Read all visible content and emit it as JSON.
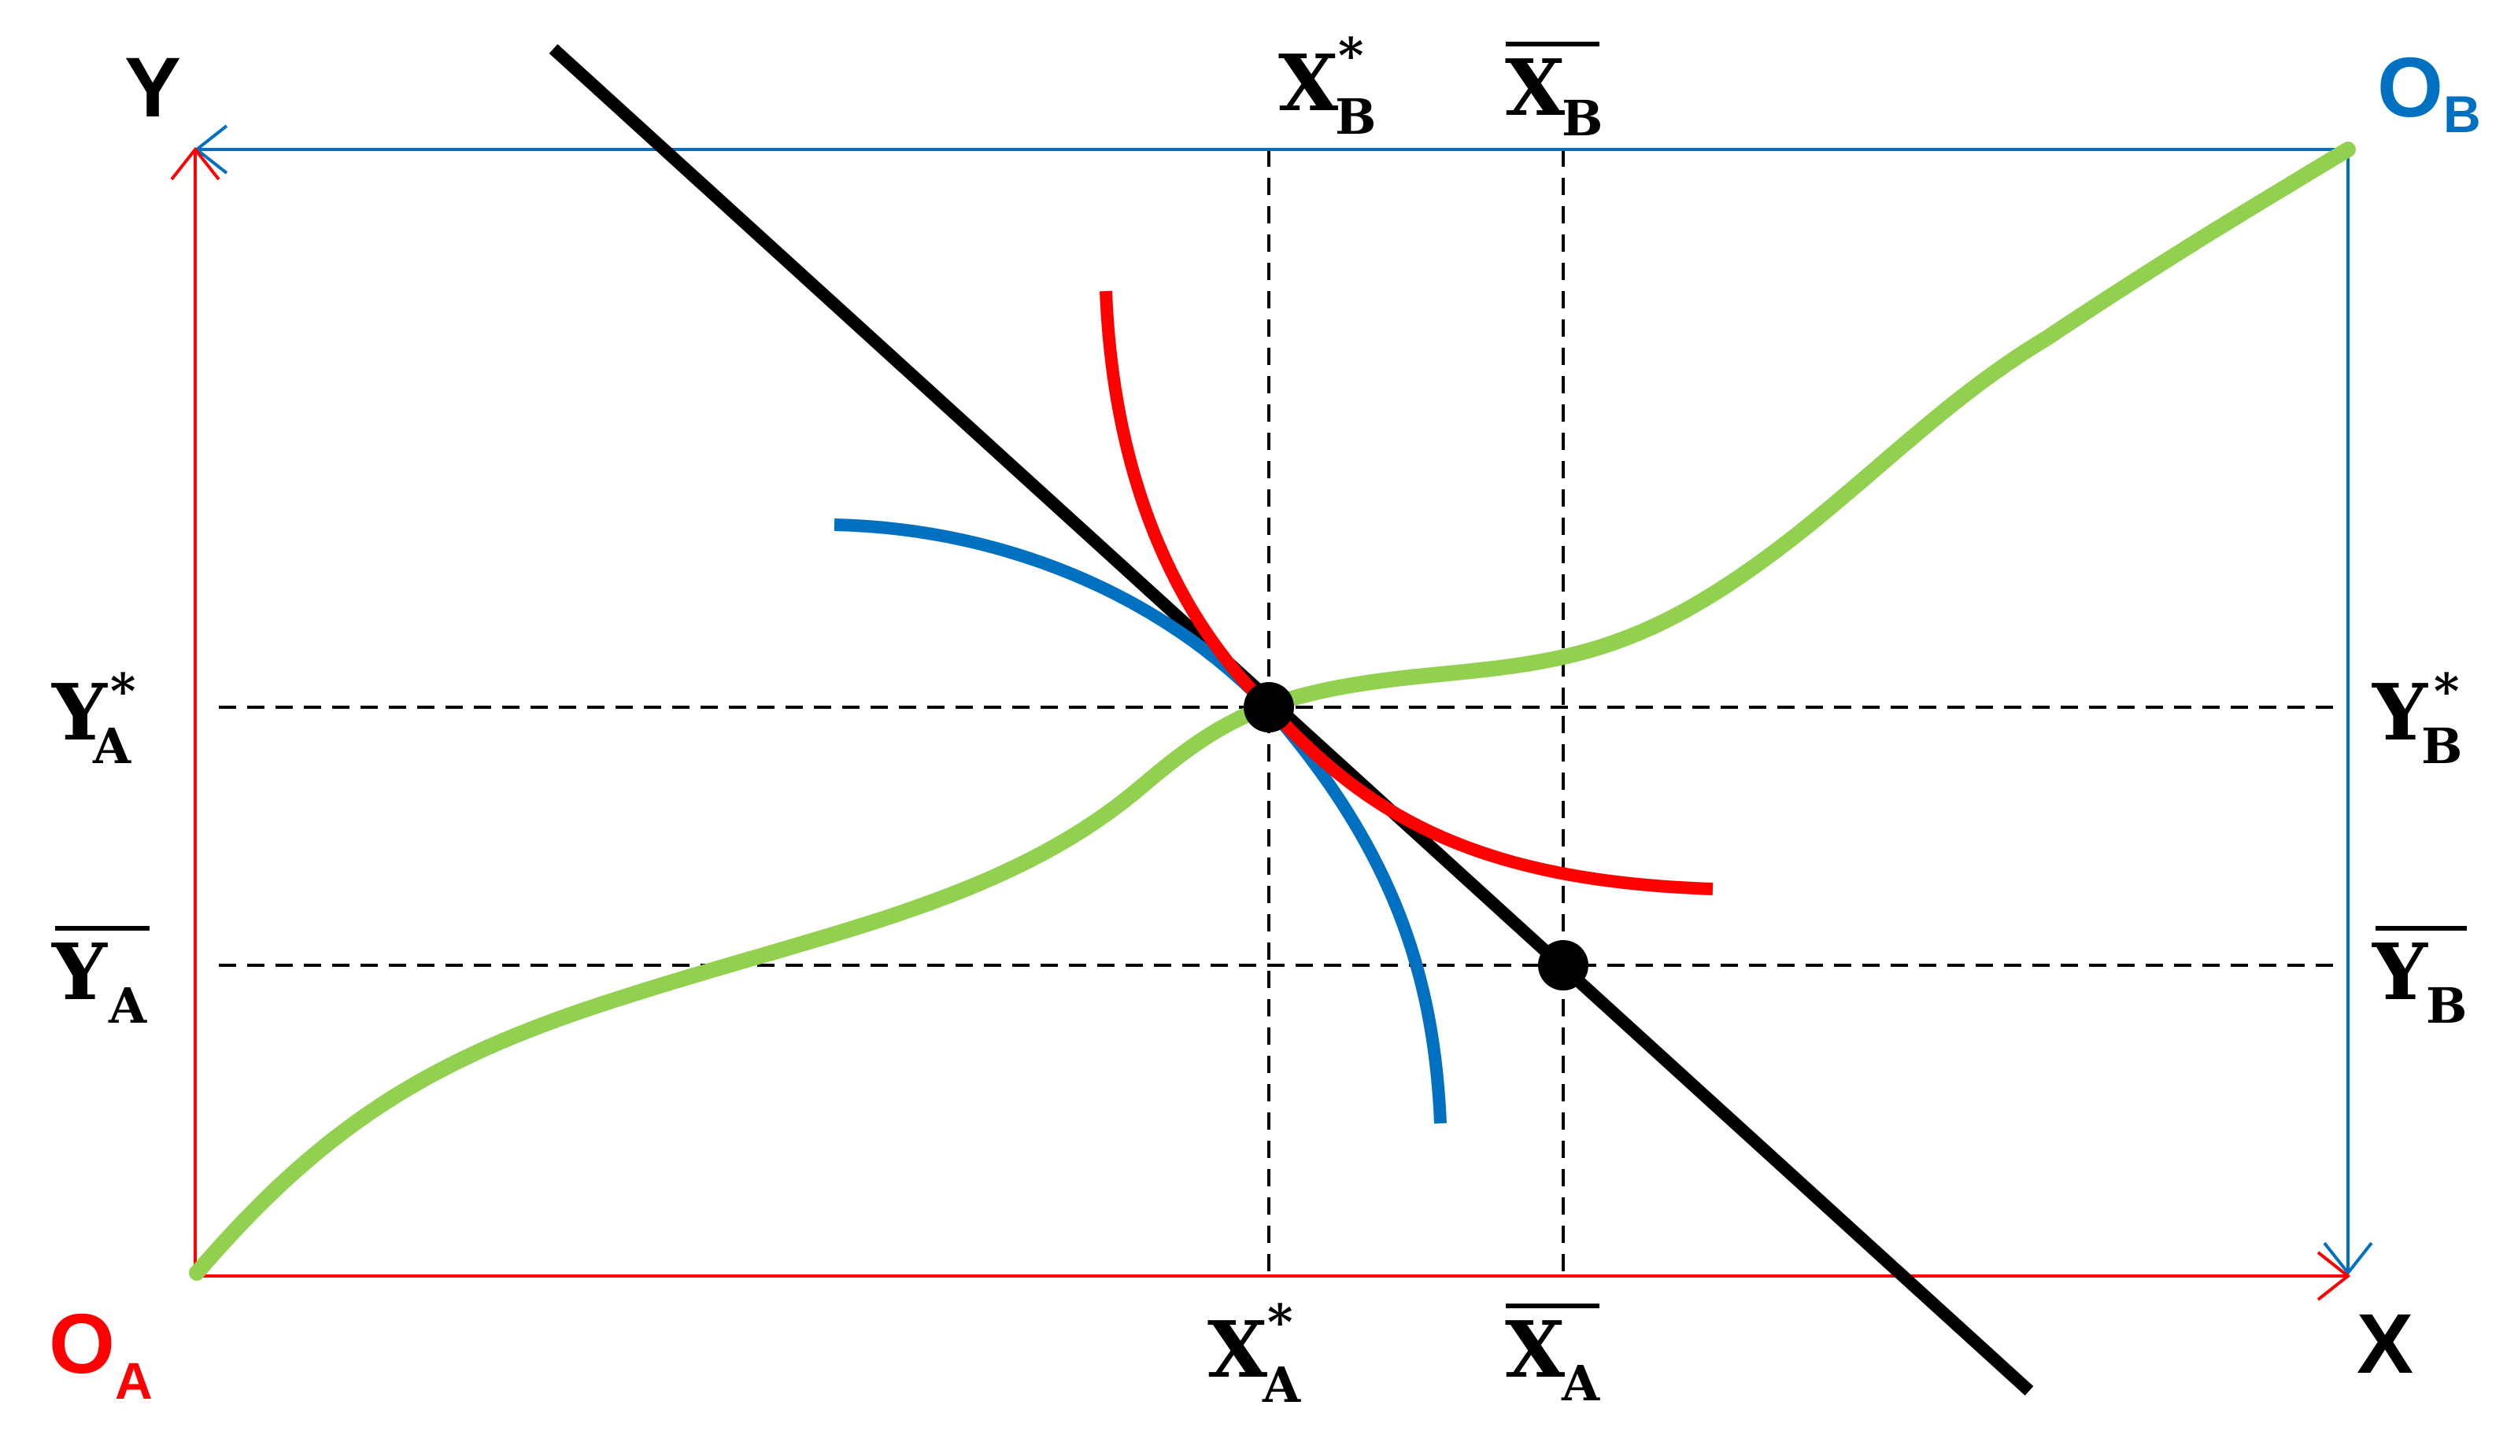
{
  "labels": {
    "y_axis": "Y",
    "x_axis": "X",
    "origin_a_main": "O",
    "origin_a_sub": "A",
    "origin_b_main": "O",
    "origin_b_sub": "B",
    "xb_star_main": "X",
    "xb_star_sub": "B",
    "xb_star_sup": "*",
    "xb_bar_main": "X",
    "xb_bar_sub": "B",
    "xa_star_main": "X",
    "xa_star_sub": "A",
    "xa_star_sup": "*",
    "xa_bar_main": "X",
    "xa_bar_sub": "A",
    "ya_star_main": "Y",
    "ya_star_sub": "A",
    "ya_star_sup": "*",
    "ya_bar_main": "Y",
    "ya_bar_sub": "A",
    "yb_star_main": "Y",
    "yb_star_sub": "B",
    "yb_star_sup": "*",
    "yb_bar_main": "Y",
    "yb_bar_sub": "B"
  },
  "colors": {
    "person_a_axes": "#ff0000",
    "person_b_axes": "#0070c0",
    "contract_curve": "#92d050",
    "budget_line": "#000000",
    "indifference_a": "#ff0000",
    "indifference_b": "#0070c0",
    "guides": "#000000",
    "origin_a_label": "#ff0000",
    "origin_b_label": "#0070c0"
  }
}
